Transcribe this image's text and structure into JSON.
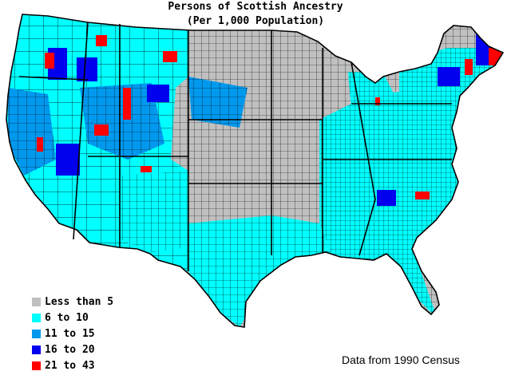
{
  "title": {
    "line1": "Persons of Scottish Ancestry",
    "line2": "(Per 1,000 Population)"
  },
  "legend": [
    {
      "label": "Less than 5",
      "color": "#c0c0c0"
    },
    {
      "label": "6 to 10",
      "color": "#00ffff"
    },
    {
      "label": "11 to 15",
      "color": "#0099ee"
    },
    {
      "label": "16 to 20",
      "color": "#0000ee"
    },
    {
      "label": "21 to 43",
      "color": "#ff0000"
    }
  ],
  "source_note": "Data from 1990 Census",
  "map": {
    "subject": "Persons of Scottish ancestry per 1,000 population by US county",
    "region": "Contiguous United States",
    "dominant_classes": {
      "west_and_northwest": "6 to 10 / 11 to 15",
      "great_plains_and_midwest": "Less than 5",
      "southeast_and_appalachia": "6 to 10",
      "northern_new_england": "16 to 20 / 21 to 43"
    }
  }
}
